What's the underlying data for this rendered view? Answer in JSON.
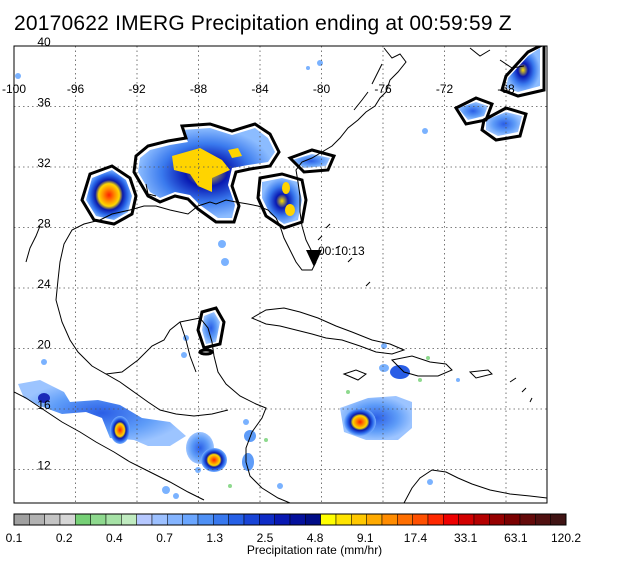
{
  "title": "20170622 IMERG Precipitation ending at 00:59:59 Z",
  "map": {
    "lon_labels": [
      "-100",
      "-96",
      "-92",
      "-88",
      "-84",
      "-80",
      "-76",
      "-72",
      "-68"
    ],
    "lat_labels": [
      "40",
      "36",
      "32",
      "28",
      "24",
      "20",
      "16",
      "12"
    ],
    "overpass_time": "00:10:13",
    "coastline_color": "#000000",
    "grid": "dotted"
  },
  "colorbar": {
    "title": "Precipitation rate (mm/hr)",
    "tick_labels": [
      "0.1",
      "0.2",
      "0.4",
      "0.7",
      "1.3",
      "2.5",
      "4.8",
      "9.1",
      "17.4",
      "33.1",
      "63.1",
      "120.2"
    ],
    "colors": [
      "#a0a0a0",
      "#b2b2b2",
      "#c4c4c4",
      "#d6d6d6",
      "#76d076",
      "#8ed98e",
      "#a6e2a6",
      "#c0ebc0",
      "#b6c8ff",
      "#9cc0ff",
      "#84b4ff",
      "#6aa6ff",
      "#4e90f5",
      "#3878ee",
      "#2660e6",
      "#1844d6",
      "#0e2cc6",
      "#0818b2",
      "#04109c",
      "#000c86",
      "#ffff00",
      "#ffe400",
      "#ffc800",
      "#ffaa00",
      "#ff8c00",
      "#ff6e00",
      "#ff5000",
      "#ff2800",
      "#ee0000",
      "#d20000",
      "#b40000",
      "#960000",
      "#7a0000",
      "#640a0a",
      "#501010",
      "#401414"
    ]
  }
}
